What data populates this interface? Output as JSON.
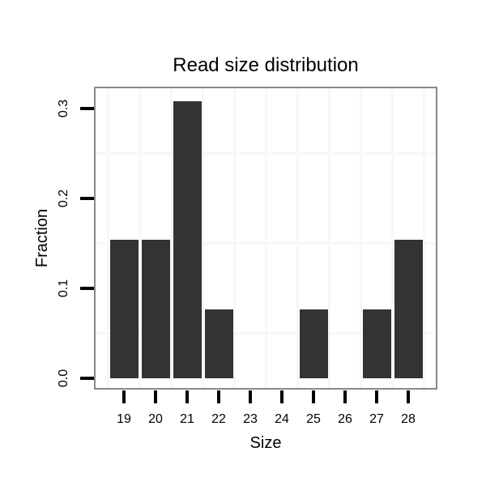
{
  "chart_data": {
    "type": "bar",
    "title": "Read size distribution",
    "xlabel": "Size",
    "ylabel": "Fraction",
    "categories": [
      "19",
      "20",
      "21",
      "22",
      "23",
      "24",
      "25",
      "26",
      "27",
      "28"
    ],
    "values": [
      0.1538,
      0.1538,
      0.3077,
      0.0769,
      0,
      0,
      0.0769,
      0,
      0.0769,
      0.1538
    ],
    "ytick_values": [
      0,
      0.1,
      0.2,
      0.3
    ],
    "ytick_labels": [
      "0.0",
      "0.1",
      "0.2",
      "0.3"
    ],
    "ylim": [
      0,
      0.325
    ],
    "grid": "on",
    "minor_grid_y_values": [
      0.05,
      0.15,
      0.25
    ],
    "legend": "none",
    "colors": {
      "bar_fill": "#333333",
      "panel_border": "#898989",
      "gridline": "#f7f7f7",
      "tick": "#000000",
      "text": "#000000",
      "background": "#ffffff"
    }
  }
}
